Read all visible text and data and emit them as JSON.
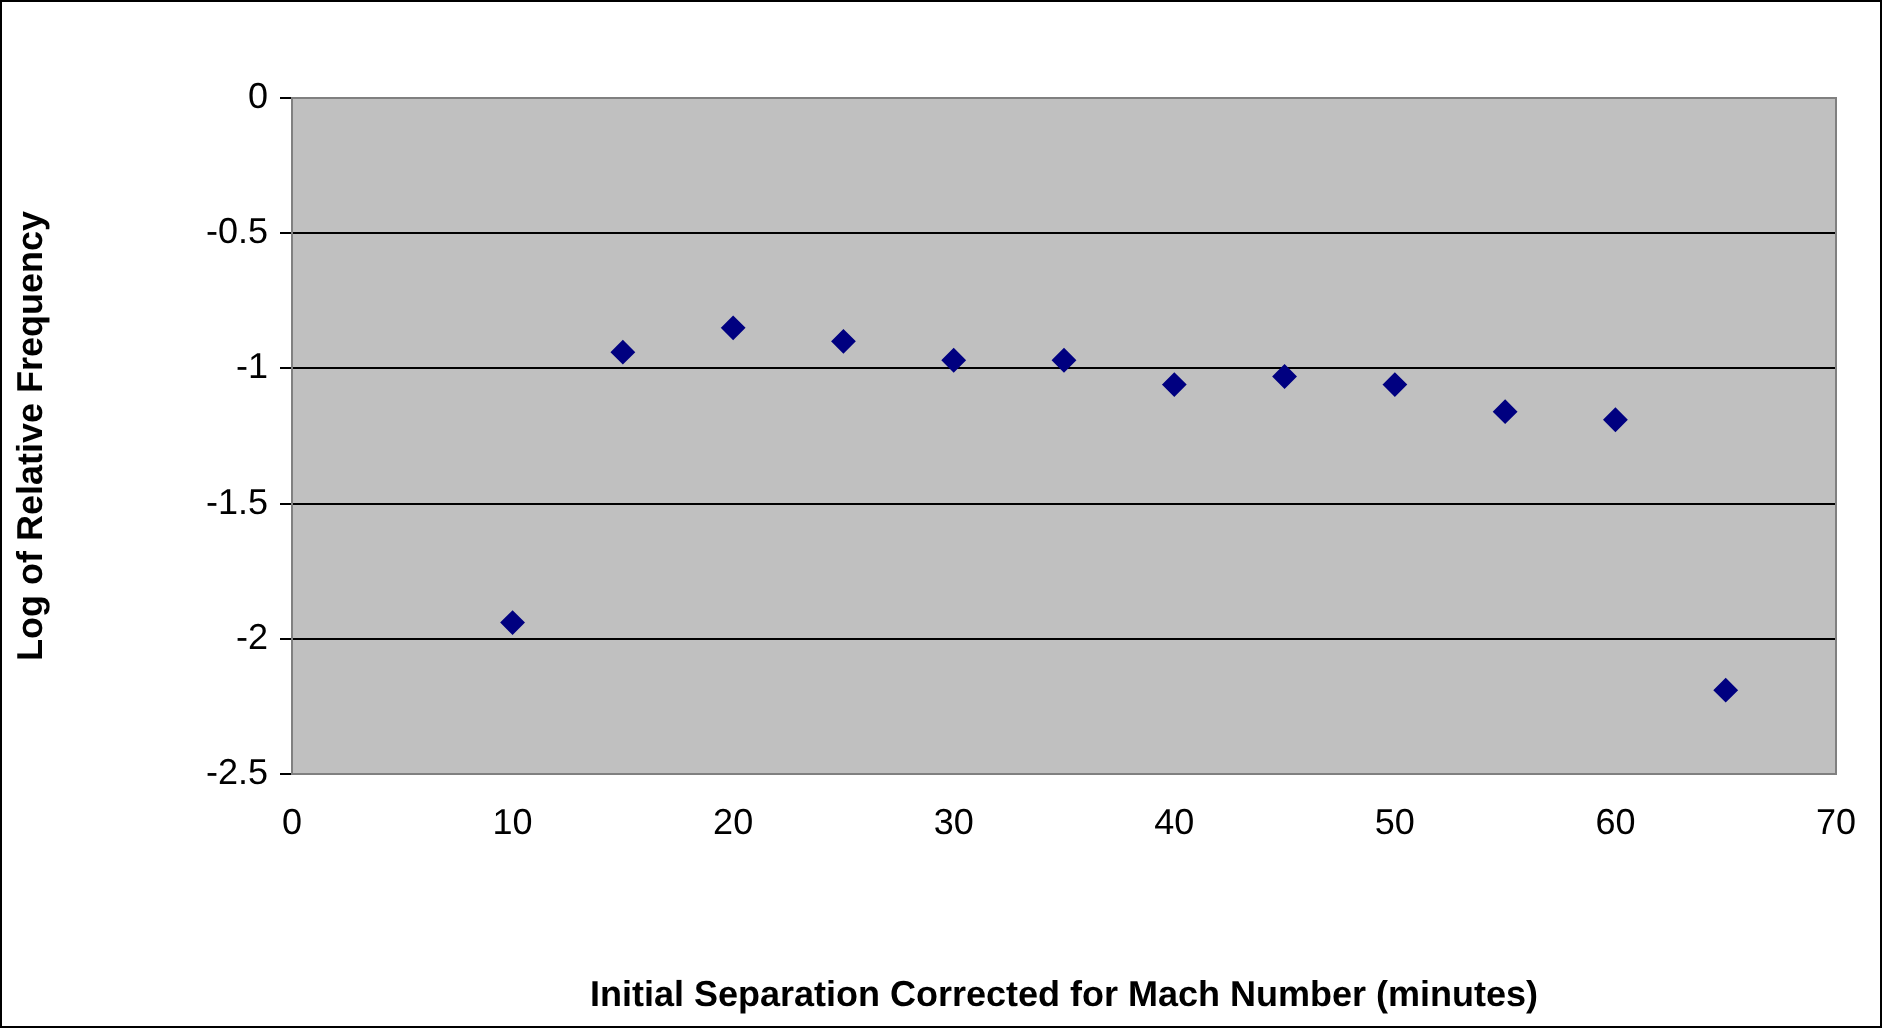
{
  "chart_data": {
    "type": "scatter",
    "xlabel": "Initial Separation Corrected for Mach Number (minutes)",
    "ylabel": "Log of Relative Frequency",
    "x": [
      10,
      15,
      20,
      25,
      30,
      35,
      40,
      45,
      50,
      55,
      60,
      65
    ],
    "series": [
      {
        "color": "#000080",
        "values": [
          -1.94,
          -0.94,
          -0.85,
          -0.9,
          -0.97,
          -0.97,
          -1.06,
          -1.03,
          -1.06,
          -1.16,
          -1.19,
          -2.19
        ]
      }
    ],
    "xlim": [
      0,
      70
    ],
    "xticks": [
      0,
      10,
      20,
      30,
      40,
      50,
      60,
      70
    ],
    "ylim": [
      -2.5,
      0
    ],
    "yticks": [
      -2.5,
      -2,
      -1.5,
      -1,
      -0.5,
      0
    ],
    "grid": "y",
    "marker": "diamond",
    "legend": false
  }
}
